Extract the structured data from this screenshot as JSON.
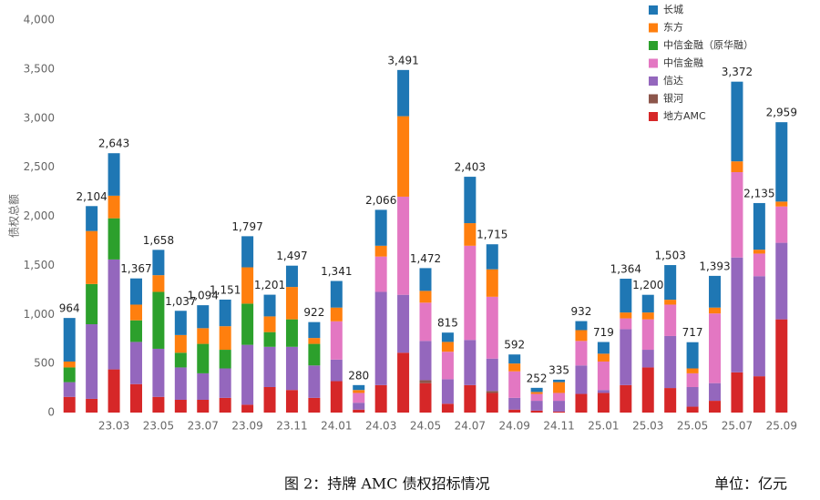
{
  "chart_data": {
    "type": "stacked_bar",
    "y_label": "债权总额",
    "caption": "图 2：持牌 AMC 债权招标情况",
    "unit_note": "单位：亿元",
    "categories": [
      null,
      null,
      "23.03",
      null,
      "23.05",
      null,
      "23.07",
      null,
      "23.09",
      null,
      "23.11",
      null,
      "24.01",
      null,
      "24.03",
      null,
      "24.05",
      null,
      "24.07",
      null,
      "24.09",
      null,
      "24.11",
      null,
      "25.01",
      null,
      "25.03",
      null,
      "25.05",
      null,
      "25.07",
      null,
      "25.09"
    ],
    "totals": [
      964,
      2104,
      2643,
      1367,
      1658,
      1037,
      1094,
      1151,
      1797,
      1201,
      1497,
      922,
      1341,
      280,
      2066,
      3491,
      1472,
      815,
      2403,
      1715,
      592,
      252,
      335,
      932,
      719,
      1364,
      1200,
      1503,
      717,
      1393,
      3372,
      2135,
      2959
    ],
    "totals_labels": [
      "964",
      "2,104",
      "2,643",
      "1,367",
      "1,658",
      "1,037",
      "1,094",
      "1,151",
      "1,797",
      "1,201",
      "1,497",
      "922",
      "1,341",
      "280",
      "2,066",
      "3,491",
      "1,472",
      "815",
      "2,403",
      "1,715",
      "592",
      "252",
      "335",
      "932",
      "719",
      "1,364",
      "1,200",
      "1,503",
      "717",
      "1,393",
      "3,372",
      "2,135",
      "2,959"
    ],
    "series": [
      {
        "name": "地方AMC",
        "color": "#d62728",
        "values": [
          160,
          140,
          440,
          290,
          160,
          130,
          130,
          150,
          80,
          260,
          230,
          150,
          320,
          30,
          280,
          610,
          300,
          90,
          280,
          200,
          30,
          20,
          10,
          190,
          200,
          280,
          460,
          250,
          60,
          120,
          410,
          370,
          950
        ]
      },
      {
        "name": "银河",
        "color": "#8c564b",
        "values": [
          0,
          0,
          0,
          0,
          0,
          0,
          0,
          0,
          0,
          0,
          0,
          0,
          0,
          0,
          0,
          0,
          30,
          0,
          0,
          20,
          0,
          0,
          0,
          0,
          0,
          0,
          0,
          0,
          0,
          0,
          0,
          0,
          0
        ]
      },
      {
        "name": "信达",
        "color": "#9467bd",
        "values": [
          150,
          760,
          1120,
          430,
          490,
          330,
          270,
          300,
          610,
          410,
          440,
          330,
          220,
          70,
          950,
          590,
          400,
          250,
          460,
          330,
          120,
          100,
          110,
          290,
          30,
          570,
          180,
          530,
          200,
          180,
          1170,
          1020,
          780
        ]
      },
      {
        "name": "中信金融",
        "color": "#e377c2",
        "values": [
          0,
          0,
          0,
          0,
          0,
          0,
          0,
          0,
          0,
          0,
          0,
          0,
          390,
          100,
          360,
          1000,
          390,
          280,
          960,
          630,
          270,
          70,
          80,
          250,
          290,
          110,
          310,
          320,
          140,
          710,
          870,
          230,
          370
        ]
      },
      {
        "name": "中信金融（原华融）",
        "color": "#2ca02c",
        "values": [
          150,
          410,
          420,
          220,
          580,
          150,
          300,
          190,
          420,
          150,
          280,
          220,
          0,
          0,
          0,
          0,
          0,
          0,
          0,
          0,
          0,
          0,
          0,
          0,
          0,
          0,
          0,
          0,
          0,
          0,
          0,
          0,
          0
        ]
      },
      {
        "name": "东方",
        "color": "#ff7f0e",
        "values": [
          60,
          540,
          230,
          160,
          170,
          180,
          160,
          240,
          370,
          160,
          330,
          60,
          140,
          30,
          110,
          820,
          120,
          100,
          230,
          280,
          80,
          20,
          110,
          110,
          80,
          60,
          70,
          50,
          50,
          60,
          110,
          40,
          50
        ]
      },
      {
        "name": "长城",
        "color": "#1f77b4",
        "values": [
          444,
          254,
          433,
          267,
          258,
          247,
          234,
          271,
          317,
          221,
          217,
          162,
          271,
          50,
          366,
          471,
          232,
          95,
          473,
          255,
          92,
          42,
          25,
          92,
          119,
          344,
          180,
          353,
          267,
          323,
          812,
          475,
          809
        ]
      }
    ],
    "ylim": [
      0,
      4000
    ],
    "yticks": [
      0,
      500,
      {
        "value": 1000,
        "label": "1,000"
      },
      {
        "value": 1500,
        "label": "1,500"
      },
      {
        "value": 2000,
        "label": "2,000"
      },
      {
        "value": 2500,
        "label": "2,500"
      },
      {
        "value": 3000,
        "label": "3,000"
      },
      {
        "value": 3500,
        "label": "3,500"
      },
      {
        "value": 4000,
        "label": "4,000"
      }
    ],
    "grid": false
  }
}
